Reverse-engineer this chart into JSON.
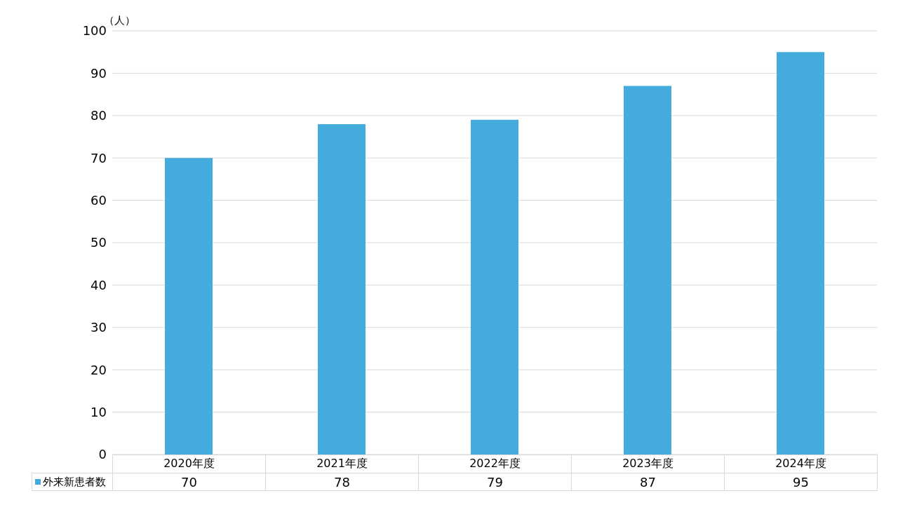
{
  "chart_data": {
    "type": "bar",
    "ylabel": "（人）",
    "categories": [
      "2020年度",
      "2021年度",
      "2022年度",
      "2023年度",
      "2024年度"
    ],
    "series": [
      {
        "name": "外来新患者数",
        "color": "#44acdc",
        "values": [
          70,
          78,
          79,
          87,
          95
        ]
      }
    ],
    "ylim": [
      0,
      100
    ],
    "yticks": [
      0,
      10,
      20,
      30,
      40,
      50,
      60,
      70,
      80,
      90,
      100
    ],
    "grid": "y",
    "legend": "bottom left",
    "data_labels": true
  }
}
